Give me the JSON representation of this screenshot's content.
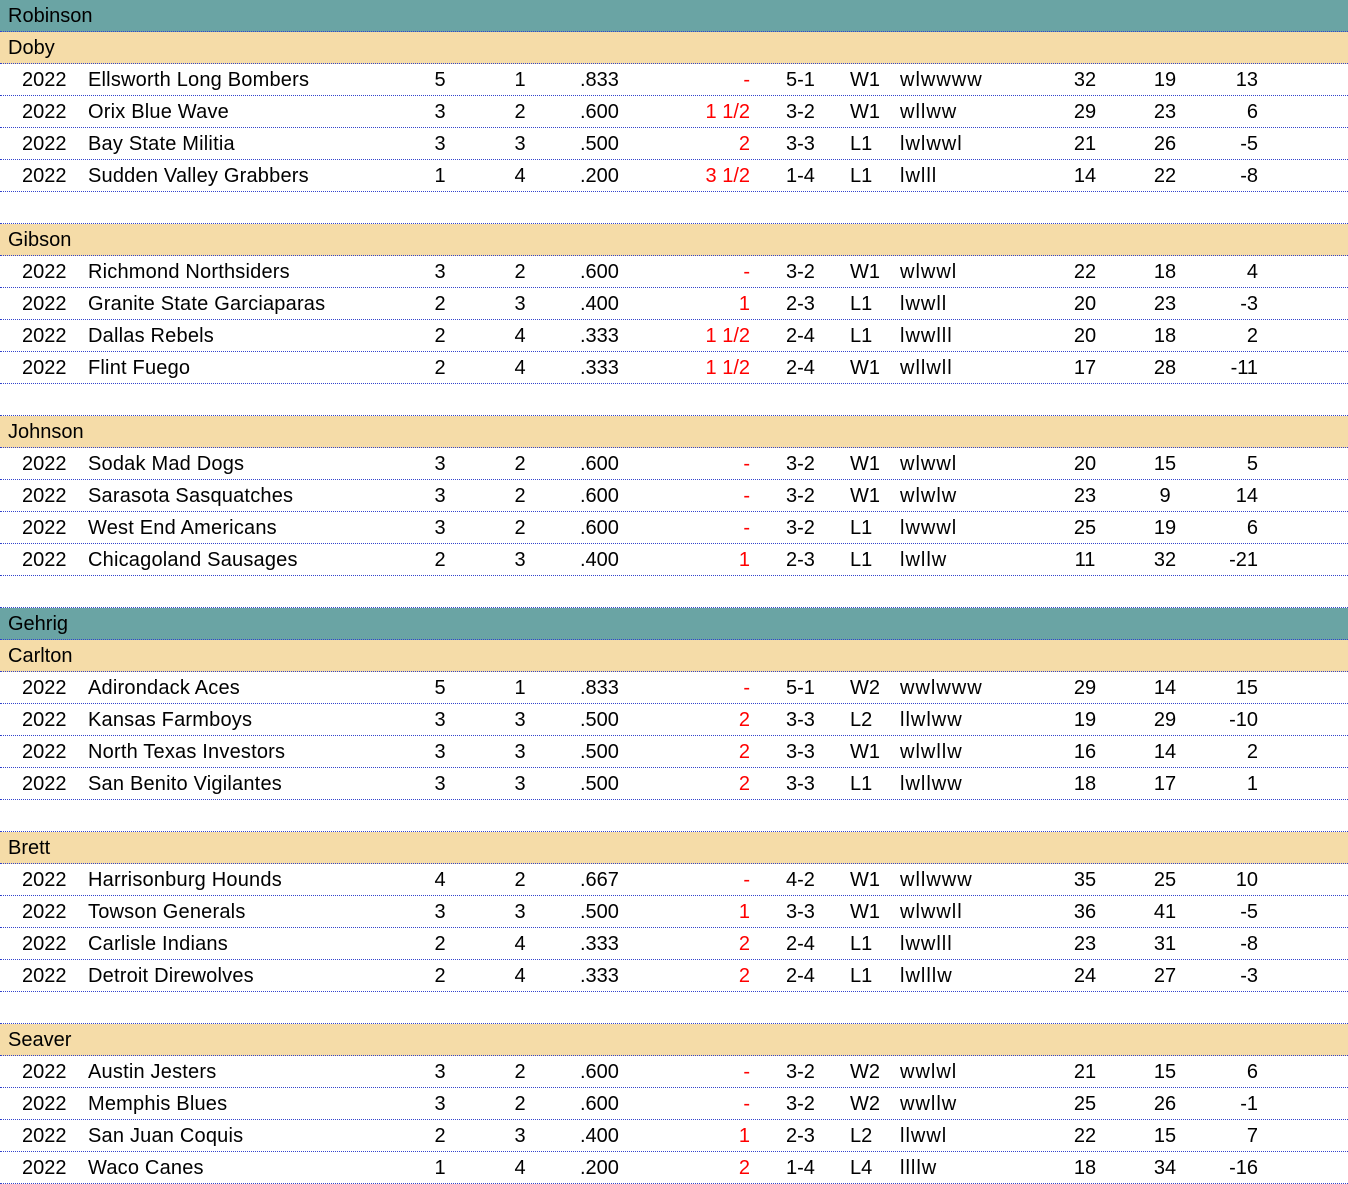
{
  "leagues": [
    {
      "name": "Robinson",
      "divisions": [
        {
          "name": "Doby",
          "teams": [
            {
              "year": "2022",
              "team": "Ellsworth Long Bombers",
              "w": "5",
              "l": "1",
              "pct": ".833",
              "gb": "-",
              "last6": "5-1",
              "streak": "W1",
              "recent": "wlwwww",
              "rs": "32",
              "ra": "19",
              "diff": "13"
            },
            {
              "year": "2022",
              "team": "Orix  Blue Wave",
              "w": "3",
              "l": "2",
              "pct": ".600",
              "gb": "1 1/2",
              "last6": "3-2",
              "streak": "W1",
              "recent": "wllww",
              "rs": "29",
              "ra": "23",
              "diff": "6"
            },
            {
              "year": "2022",
              "team": "Bay State Militia",
              "w": "3",
              "l": "3",
              "pct": ".500",
              "gb": "2",
              "last6": "3-3",
              "streak": "L1",
              "recent": "lwlwwl",
              "rs": "21",
              "ra": "26",
              "diff": "-5"
            },
            {
              "year": "2022",
              "team": "Sudden Valley Grabbers",
              "w": "1",
              "l": "4",
              "pct": ".200",
              "gb": "3 1/2",
              "last6": "1-4",
              "streak": "L1",
              "recent": "lwlll",
              "rs": "14",
              "ra": "22",
              "diff": "-8"
            }
          ]
        },
        {
          "name": "Gibson",
          "teams": [
            {
              "year": "2022",
              "team": "Richmond Northsiders",
              "w": "3",
              "l": "2",
              "pct": ".600",
              "gb": "-",
              "last6": "3-2",
              "streak": "W1",
              "recent": "wlwwl",
              "rs": "22",
              "ra": "18",
              "diff": "4"
            },
            {
              "year": "2022",
              "team": "Granite State Garciaparas",
              "w": "2",
              "l": "3",
              "pct": ".400",
              "gb": "1",
              "last6": "2-3",
              "streak": "L1",
              "recent": "lwwll",
              "rs": "20",
              "ra": "23",
              "diff": "-3"
            },
            {
              "year": "2022",
              "team": "Dallas Rebels",
              "w": "2",
              "l": "4",
              "pct": ".333",
              "gb": "1 1/2",
              "last6": "2-4",
              "streak": "L1",
              "recent": "lwwlll",
              "rs": "20",
              "ra": "18",
              "diff": "2"
            },
            {
              "year": "2022",
              "team": "Flint Fuego",
              "w": "2",
              "l": "4",
              "pct": ".333",
              "gb": "1 1/2",
              "last6": "2-4",
              "streak": "W1",
              "recent": "wllwll",
              "rs": "17",
              "ra": "28",
              "diff": "-11"
            }
          ]
        },
        {
          "name": "Johnson",
          "teams": [
            {
              "year": "2022",
              "team": "Sodak Mad Dogs",
              "w": "3",
              "l": "2",
              "pct": ".600",
              "gb": "-",
              "last6": "3-2",
              "streak": "W1",
              "recent": "wlwwl",
              "rs": "20",
              "ra": "15",
              "diff": "5"
            },
            {
              "year": "2022",
              "team": "Sarasota Sasquatches",
              "w": "3",
              "l": "2",
              "pct": ".600",
              "gb": "-",
              "last6": "3-2",
              "streak": "W1",
              "recent": "wlwlw",
              "rs": "23",
              "ra": "9",
              "diff": "14"
            },
            {
              "year": "2022",
              "team": "West End Americans",
              "w": "3",
              "l": "2",
              "pct": ".600",
              "gb": "-",
              "last6": "3-2",
              "streak": "L1",
              "recent": "lwwwl",
              "rs": "25",
              "ra": "19",
              "diff": "6"
            },
            {
              "year": "2022",
              "team": "Chicagoland Sausages",
              "w": "2",
              "l": "3",
              "pct": ".400",
              "gb": "1",
              "last6": "2-3",
              "streak": "L1",
              "recent": "lwllw",
              "rs": "11",
              "ra": "32",
              "diff": "-21"
            }
          ]
        }
      ]
    },
    {
      "name": "Gehrig",
      "divisions": [
        {
          "name": "Carlton",
          "teams": [
            {
              "year": "2022",
              "team": "Adirondack Aces",
              "w": "5",
              "l": "1",
              "pct": ".833",
              "gb": "-",
              "last6": "5-1",
              "streak": "W2",
              "recent": "wwlwww",
              "rs": "29",
              "ra": "14",
              "diff": "15"
            },
            {
              "year": "2022",
              "team": "Kansas Farmboys",
              "w": "3",
              "l": "3",
              "pct": ".500",
              "gb": "2",
              "last6": "3-3",
              "streak": "L2",
              "recent": "llwlww",
              "rs": "19",
              "ra": "29",
              "diff": "-10"
            },
            {
              "year": "2022",
              "team": "North Texas Investors",
              "w": "3",
              "l": "3",
              "pct": ".500",
              "gb": "2",
              "last6": "3-3",
              "streak": "W1",
              "recent": "wlwllw",
              "rs": "16",
              "ra": "14",
              "diff": "2"
            },
            {
              "year": "2022",
              "team": "San Benito Vigilantes",
              "w": "3",
              "l": "3",
              "pct": ".500",
              "gb": "2",
              "last6": "3-3",
              "streak": "L1",
              "recent": "lwllww",
              "rs": "18",
              "ra": "17",
              "diff": "1"
            }
          ]
        },
        {
          "name": "Brett",
          "teams": [
            {
              "year": "2022",
              "team": "Harrisonburg Hounds",
              "w": "4",
              "l": "2",
              "pct": ".667",
              "gb": "-",
              "last6": "4-2",
              "streak": "W1",
              "recent": "wllwww",
              "rs": "35",
              "ra": "25",
              "diff": "10"
            },
            {
              "year": "2022",
              "team": "Towson  Generals",
              "w": "3",
              "l": "3",
              "pct": ".500",
              "gb": "1",
              "last6": "3-3",
              "streak": "W1",
              "recent": "wlwwll",
              "rs": "36",
              "ra": "41",
              "diff": "-5"
            },
            {
              "year": "2022",
              "team": "Carlisle Indians",
              "w": "2",
              "l": "4",
              "pct": ".333",
              "gb": "2",
              "last6": "2-4",
              "streak": "L1",
              "recent": "lwwlll",
              "rs": "23",
              "ra": "31",
              "diff": "-8"
            },
            {
              "year": "2022",
              "team": "Detroit Direwolves",
              "w": "2",
              "l": "4",
              "pct": ".333",
              "gb": "2",
              "last6": "2-4",
              "streak": "L1",
              "recent": "lwlllw",
              "rs": "24",
              "ra": "27",
              "diff": "-3"
            }
          ]
        },
        {
          "name": "Seaver",
          "teams": [
            {
              "year": "2022",
              "team": "Austin Jesters",
              "w": "3",
              "l": "2",
              "pct": ".600",
              "gb": "-",
              "last6": "3-2",
              "streak": "W2",
              "recent": "wwlwl",
              "rs": "21",
              "ra": "15",
              "diff": "6"
            },
            {
              "year": "2022",
              "team": "Memphis Blues",
              "w": "3",
              "l": "2",
              "pct": ".600",
              "gb": "-",
              "last6": "3-2",
              "streak": "W2",
              "recent": "wwllw",
              "rs": "25",
              "ra": "26",
              "diff": "-1"
            },
            {
              "year": "2022",
              "team": "San Juan Coquis",
              "w": "2",
              "l": "3",
              "pct": ".400",
              "gb": "1",
              "last6": "2-3",
              "streak": "L2",
              "recent": "llwwl",
              "rs": "22",
              "ra": "15",
              "diff": "7"
            },
            {
              "year": "2022",
              "team": "Waco Canes",
              "w": "1",
              "l": "4",
              "pct": ".200",
              "gb": "2",
              "last6": "1-4",
              "streak": "L4",
              "recent": "llllw",
              "rs": "18",
              "ra": "34",
              "diff": "-16"
            }
          ]
        }
      ]
    }
  ],
  "colors": {
    "league_header": "#6aa4a4",
    "division_header": "#f5dca8",
    "games_behind": "#ff0000",
    "gridline": "#3344cc"
  }
}
